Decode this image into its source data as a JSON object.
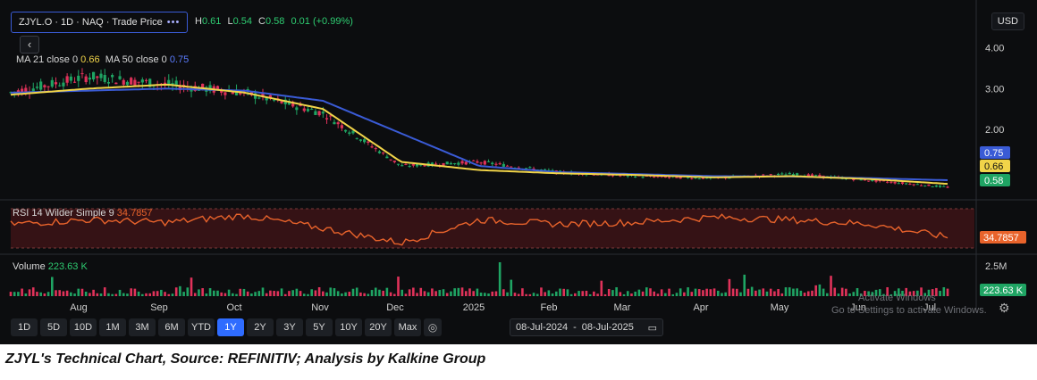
{
  "header": {
    "symbol_title": "ZJYL.O · 1D · NAQ · Trade Price",
    "menu_icon": "more-dots-icon",
    "ohlc": {
      "h_label": "H",
      "h": "0.61",
      "l_label": "L",
      "l": "0.54",
      "c_label": "C",
      "c": "0.58",
      "change": "0.01 (+0.99%)"
    },
    "ma_legend": {
      "ma21_label": "MA 21 close 0",
      "ma21_value": "0.66",
      "ma50_label": "MA 50 close 0",
      "ma50_value": "0.75"
    },
    "currency": "USD",
    "back_icon": "chevron-left-icon"
  },
  "rsi_pane": {
    "label": "RSI 14 Wilder Simple 9",
    "value": "34.7857"
  },
  "volume_pane": {
    "label": "Volume",
    "value": "223.63 K",
    "axis_label": "2.5M"
  },
  "price_axis": {
    "ticks": [
      "4.00",
      "3.00",
      "2.00"
    ],
    "badges": [
      {
        "text": "0.75",
        "color": "#3a5bd6"
      },
      {
        "text": "0.66",
        "color": "#f1d449"
      },
      {
        "text": "0.58",
        "color": "#1fa463"
      }
    ]
  },
  "x_axis": {
    "labels": [
      "Aug",
      "Sep",
      "Oct",
      "Nov",
      "Dec",
      "2025",
      "Feb",
      "Mar",
      "Apr",
      "May",
      "Jun",
      "Jul"
    ]
  },
  "toolbar": {
    "ranges": [
      "1D",
      "5D",
      "10D",
      "1M",
      "3M",
      "6M",
      "YTD",
      "1Y",
      "2Y",
      "3Y",
      "5Y",
      "10Y",
      "20Y",
      "Max"
    ],
    "active": "1Y",
    "date_from": "08-Jul-2024",
    "date_to": "08-Jul-2025",
    "calendar_icon": "calendar-icon"
  },
  "watermark": {
    "line1": "Activate Windows",
    "line2": "Go to Settings to activate Windows."
  },
  "caption": "ZJYL's Technical Chart, Source: REFINITIV; Analysis by Kalkine Group",
  "colors": {
    "up": "#1fa463",
    "down": "#e0325a",
    "ma21": "#f1d449",
    "ma50": "#3a5bd6",
    "rsi": "#e8632b"
  },
  "chart_data": {
    "type": "line",
    "title": "ZJYL.O · 1D · NAQ · Trade Price",
    "x": [
      "Jul-2024",
      "Aug",
      "Sep",
      "Oct",
      "Nov",
      "Dec",
      "2025",
      "Feb",
      "Mar",
      "Apr",
      "May",
      "Jun",
      "Jul-2025"
    ],
    "ylim": [
      0.4,
      4.3
    ],
    "series": [
      {
        "name": "Close",
        "values": [
          2.9,
          3.3,
          3.1,
          2.9,
          2.4,
          1.1,
          1.2,
          0.95,
          0.85,
          0.8,
          0.9,
          0.75,
          0.58
        ]
      },
      {
        "name": "MA 21 close 0",
        "values": [
          2.85,
          3.0,
          3.1,
          2.9,
          2.5,
          1.2,
          1.0,
          0.92,
          0.88,
          0.82,
          0.85,
          0.78,
          0.66
        ]
      },
      {
        "name": "MA 50 close 0",
        "values": [
          2.9,
          2.95,
          3.0,
          2.95,
          2.7,
          1.9,
          1.1,
          0.95,
          0.9,
          0.85,
          0.84,
          0.8,
          0.75
        ]
      }
    ],
    "rsi": {
      "name": "RSI 14 Wilder Simple 9",
      "values": [
        50,
        55,
        52,
        60,
        45,
        28,
        55,
        50,
        52,
        58,
        55,
        50,
        34.79
      ]
    },
    "volume": {
      "name": "Volume",
      "max": "2.5M",
      "last": "223.63 K"
    }
  }
}
